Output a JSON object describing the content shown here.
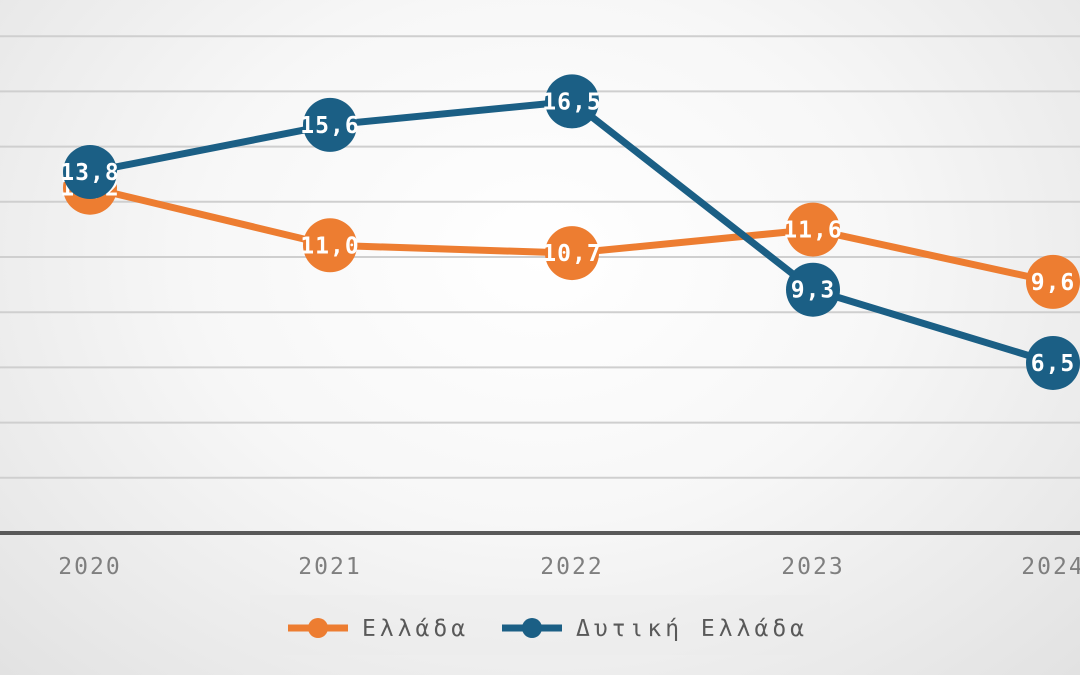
{
  "chart_data": {
    "type": "line",
    "title": "",
    "xlabel": "",
    "ylabel": "",
    "categories": [
      "2020",
      "2021",
      "2022",
      "2023",
      "2024"
    ],
    "ylim": [
      0,
      19
    ],
    "grid": true,
    "legend": "bottom",
    "series": [
      {
        "name": "Ελλάδα",
        "color": "#ED7D31",
        "values": [
          13.2,
          11.0,
          10.7,
          11.6,
          9.6
        ],
        "labels": [
          "13,2",
          "11,0",
          "10,7",
          "11,6",
          "9,6"
        ]
      },
      {
        "name": "Δυτική Ελλάδα",
        "color": "#1B5F85",
        "values": [
          13.8,
          15.6,
          16.5,
          9.3,
          6.5
        ],
        "labels": [
          "13,8",
          "15,6",
          "16,5",
          "9,3",
          "6,5"
        ]
      }
    ]
  }
}
